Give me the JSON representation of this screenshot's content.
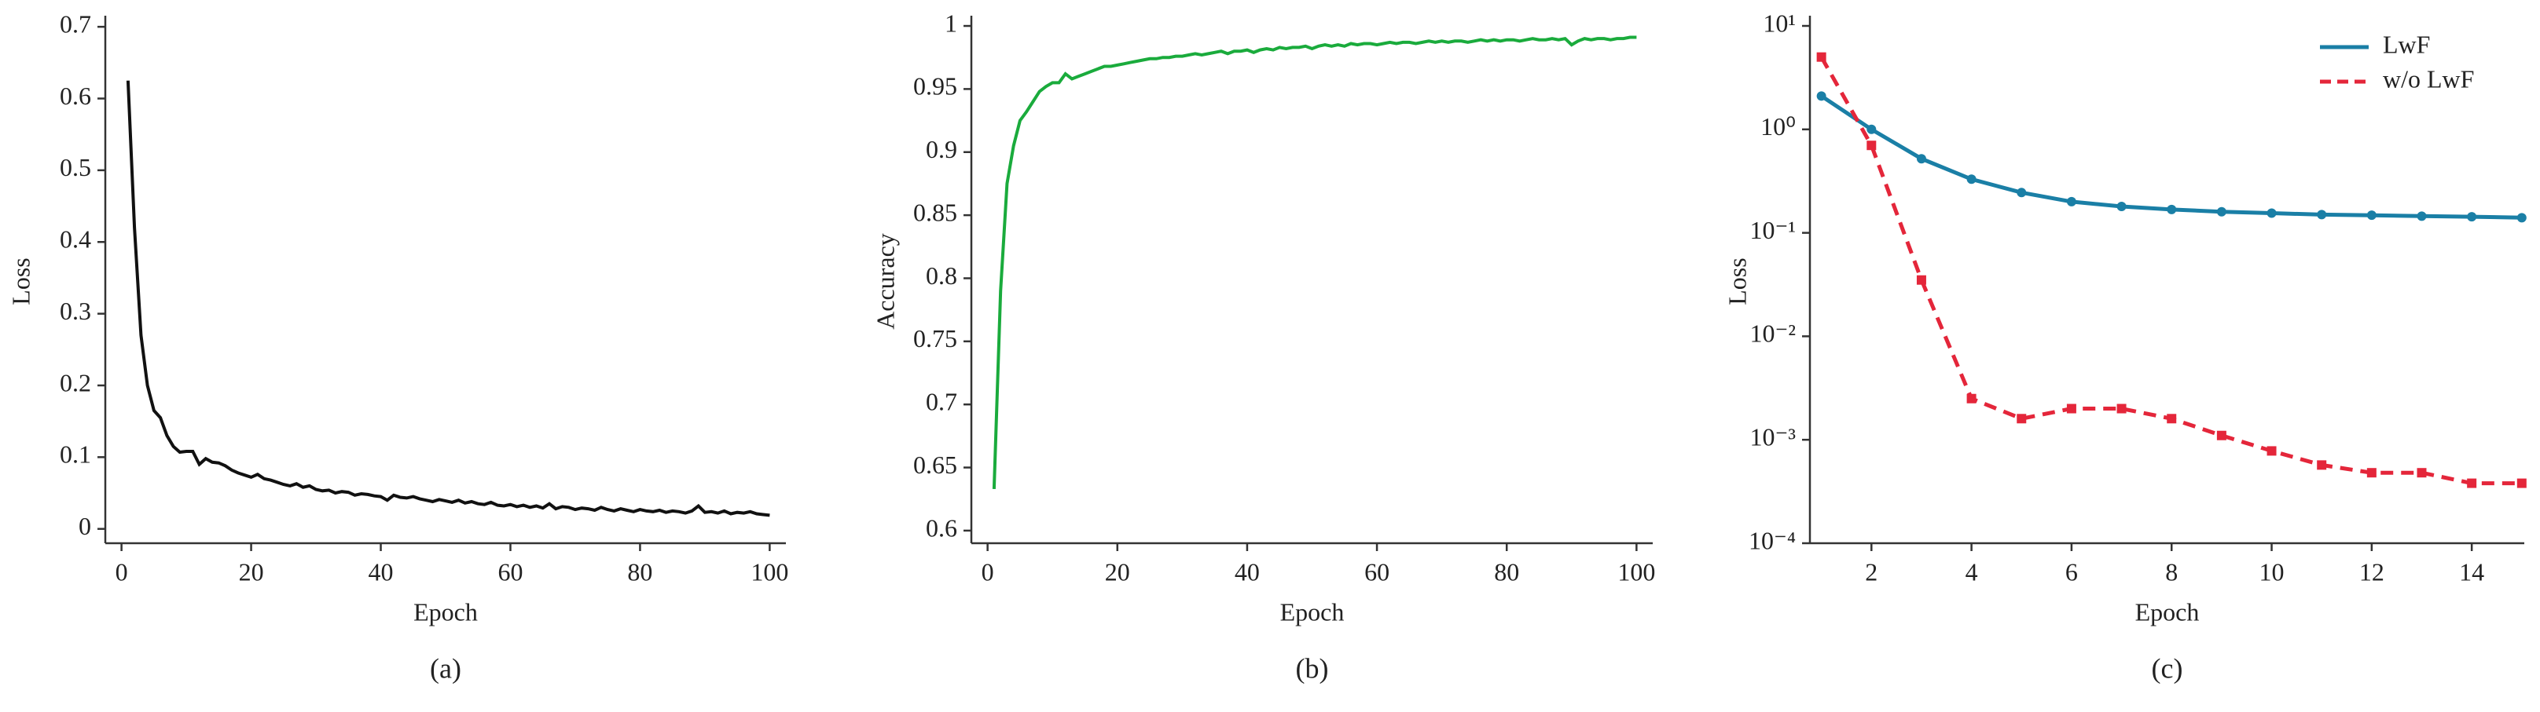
{
  "chart_data": [
    {
      "type": "line",
      "caption": "(a)",
      "xlabel": "Epoch",
      "ylabel": "Loss",
      "x": [
        1,
        2,
        3,
        4,
        5,
        6,
        7,
        8,
        9,
        10,
        11,
        12,
        13,
        14,
        15,
        16,
        17,
        18,
        19,
        20,
        21,
        22,
        23,
        24,
        25,
        26,
        27,
        28,
        29,
        30,
        31,
        32,
        33,
        34,
        35,
        36,
        37,
        38,
        39,
        40,
        41,
        42,
        43,
        44,
        45,
        46,
        47,
        48,
        49,
        50,
        51,
        52,
        53,
        54,
        55,
        56,
        57,
        58,
        59,
        60,
        61,
        62,
        63,
        64,
        65,
        66,
        67,
        68,
        69,
        70,
        71,
        72,
        73,
        74,
        75,
        76,
        77,
        78,
        79,
        80,
        81,
        82,
        83,
        84,
        85,
        86,
        87,
        88,
        89,
        90,
        91,
        92,
        93,
        94,
        95,
        96,
        97,
        98,
        99,
        100
      ],
      "series": [
        {
          "name": "Loss",
          "color": "#111111",
          "values": [
            0.625,
            0.42,
            0.27,
            0.2,
            0.165,
            0.155,
            0.13,
            0.115,
            0.107,
            0.108,
            0.108,
            0.09,
            0.098,
            0.093,
            0.092,
            0.088,
            0.082,
            0.078,
            0.075,
            0.072,
            0.076,
            0.07,
            0.068,
            0.065,
            0.062,
            0.06,
            0.063,
            0.058,
            0.06,
            0.055,
            0.053,
            0.054,
            0.05,
            0.052,
            0.051,
            0.047,
            0.049,
            0.048,
            0.046,
            0.045,
            0.04,
            0.047,
            0.044,
            0.043,
            0.045,
            0.042,
            0.04,
            0.038,
            0.041,
            0.039,
            0.037,
            0.04,
            0.036,
            0.038,
            0.035,
            0.034,
            0.037,
            0.033,
            0.032,
            0.034,
            0.031,
            0.033,
            0.03,
            0.032,
            0.029,
            0.035,
            0.028,
            0.031,
            0.03,
            0.027,
            0.029,
            0.028,
            0.026,
            0.03,
            0.027,
            0.025,
            0.028,
            0.026,
            0.024,
            0.027,
            0.025,
            0.024,
            0.026,
            0.023,
            0.025,
            0.024,
            0.022,
            0.025,
            0.032,
            0.023,
            0.024,
            0.022,
            0.025,
            0.021,
            0.023,
            0.022,
            0.024,
            0.021,
            0.02,
            0.019
          ]
        }
      ],
      "xlim": [
        -2.5,
        102.5
      ],
      "xticks": [
        0,
        20,
        40,
        60,
        80,
        100
      ],
      "ylim": [
        -0.02,
        0.71
      ],
      "yticks": [
        0,
        0.1,
        0.2,
        0.3,
        0.4,
        0.5,
        0.6,
        0.7
      ],
      "log": false
    },
    {
      "type": "line",
      "caption": "(b)",
      "xlabel": "Epoch",
      "ylabel": "Accuracy",
      "x": [
        1,
        2,
        3,
        4,
        5,
        6,
        7,
        8,
        9,
        10,
        11,
        12,
        13,
        14,
        15,
        16,
        17,
        18,
        19,
        20,
        21,
        22,
        23,
        24,
        25,
        26,
        27,
        28,
        29,
        30,
        31,
        32,
        33,
        34,
        35,
        36,
        37,
        38,
        39,
        40,
        41,
        42,
        43,
        44,
        45,
        46,
        47,
        48,
        49,
        50,
        51,
        52,
        53,
        54,
        55,
        56,
        57,
        58,
        59,
        60,
        61,
        62,
        63,
        64,
        65,
        66,
        67,
        68,
        69,
        70,
        71,
        72,
        73,
        74,
        75,
        76,
        77,
        78,
        79,
        80,
        81,
        82,
        83,
        84,
        85,
        86,
        87,
        88,
        89,
        90,
        91,
        92,
        93,
        94,
        95,
        96,
        97,
        98,
        99,
        100
      ],
      "series": [
        {
          "name": "Accuracy",
          "color": "#1aab3c",
          "values": [
            0.633,
            0.79,
            0.875,
            0.905,
            0.925,
            0.932,
            0.94,
            0.948,
            0.952,
            0.955,
            0.955,
            0.962,
            0.958,
            0.96,
            0.962,
            0.964,
            0.966,
            0.968,
            0.968,
            0.969,
            0.97,
            0.971,
            0.972,
            0.973,
            0.974,
            0.974,
            0.975,
            0.975,
            0.976,
            0.976,
            0.977,
            0.978,
            0.977,
            0.978,
            0.979,
            0.98,
            0.978,
            0.98,
            0.98,
            0.981,
            0.979,
            0.981,
            0.982,
            0.981,
            0.983,
            0.982,
            0.983,
            0.983,
            0.984,
            0.982,
            0.984,
            0.985,
            0.984,
            0.985,
            0.984,
            0.986,
            0.985,
            0.986,
            0.986,
            0.985,
            0.986,
            0.987,
            0.986,
            0.987,
            0.987,
            0.986,
            0.987,
            0.988,
            0.987,
            0.988,
            0.987,
            0.988,
            0.988,
            0.987,
            0.988,
            0.989,
            0.988,
            0.989,
            0.988,
            0.989,
            0.989,
            0.988,
            0.989,
            0.99,
            0.989,
            0.989,
            0.99,
            0.989,
            0.99,
            0.985,
            0.988,
            0.99,
            0.989,
            0.99,
            0.99,
            0.989,
            0.99,
            0.99,
            0.991,
            0.991
          ]
        }
      ],
      "xlim": [
        -2.5,
        102.5
      ],
      "xticks": [
        0,
        20,
        40,
        60,
        80,
        100
      ],
      "ylim": [
        0.59,
        1.005
      ],
      "yticks": [
        0.6,
        0.65,
        0.7,
        0.75,
        0.8,
        0.85,
        0.9,
        0.95,
        1
      ],
      "log": false
    },
    {
      "type": "line",
      "caption": "(c)",
      "xlabel": "Epoch",
      "ylabel": "Loss",
      "x": [
        1,
        2,
        3,
        4,
        5,
        6,
        7,
        8,
        9,
        10,
        11,
        12,
        13,
        14,
        15
      ],
      "series": [
        {
          "name": "LwF",
          "color": "#1a7fa6",
          "dashed": false,
          "marker": "circle",
          "values": [
            2.1,
            1.0,
            0.52,
            0.33,
            0.245,
            0.2,
            0.18,
            0.168,
            0.16,
            0.155,
            0.15,
            0.148,
            0.145,
            0.143,
            0.14
          ]
        },
        {
          "name": "w/o LwF",
          "color": "#e4263a",
          "dashed": true,
          "marker": "square",
          "values": [
            5,
            0.7,
            0.035,
            0.0025,
            0.0016,
            0.002,
            0.002,
            0.0016,
            0.0011,
            0.00078,
            0.00057,
            0.00048,
            0.00048,
            0.00038,
            0.00038
          ]
        }
      ],
      "xlim": [
        0.77,
        15.05
      ],
      "xticks": [
        2,
        4,
        6,
        8,
        10,
        12,
        14
      ],
      "ylim": [
        0.0001,
        11.5
      ],
      "yticks": [
        {
          "value": 0.0001,
          "label": "10⁻⁴"
        },
        {
          "value": 0.001,
          "label": "10⁻³"
        },
        {
          "value": 0.01,
          "label": "10⁻²"
        },
        {
          "value": 0.1,
          "label": "10⁻¹"
        },
        {
          "value": 1,
          "label": "10⁰"
        },
        {
          "value": 10,
          "label": "10¹"
        }
      ],
      "log": true,
      "legend": "upper right"
    }
  ]
}
